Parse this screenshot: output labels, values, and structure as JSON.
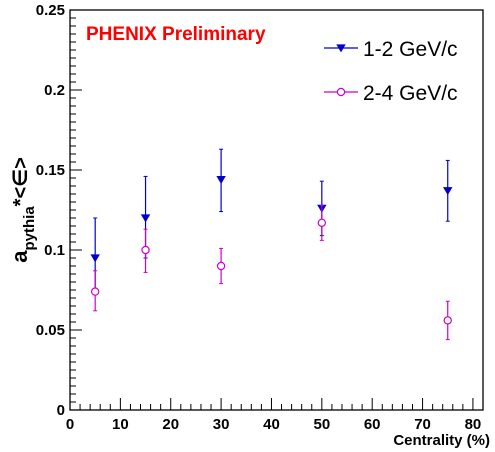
{
  "chart_data": {
    "type": "scatter",
    "title": "PHENIX Preliminary",
    "title_color": "#ff0000",
    "xlabel": "Centrality (%)",
    "ylabel": {
      "main": "a",
      "subscript": "pythia",
      "rest": "*<∈>"
    },
    "xlim": [
      0,
      82
    ],
    "ylim": [
      0,
      0.25
    ],
    "x_ticks": [
      {
        "value": 0,
        "label": "0"
      },
      {
        "value": 10,
        "label": "10"
      },
      {
        "value": 20,
        "label": "20"
      },
      {
        "value": 30,
        "label": "30"
      },
      {
        "value": 40,
        "label": "40"
      },
      {
        "value": 50,
        "label": "50"
      },
      {
        "value": 60,
        "label": "60"
      },
      {
        "value": 70,
        "label": "70"
      },
      {
        "value": 80,
        "label": "80"
      }
    ],
    "y_ticks": [
      {
        "value": 0,
        "label": "0"
      },
      {
        "value": 0.05,
        "label": "0.05"
      },
      {
        "value": 0.1,
        "label": "0.1"
      },
      {
        "value": 0.15,
        "label": "0.15"
      },
      {
        "value": 0.2,
        "label": "0.2"
      },
      {
        "value": 0.25,
        "label": "0.25"
      }
    ],
    "grid": false,
    "legend_position": "top-right",
    "series": [
      {
        "name": "1-2 GeV/c",
        "color": "#0000cc",
        "marker": "filled-triangle-down",
        "x": [
          5,
          15,
          30,
          50,
          75
        ],
        "y": [
          0.095,
          0.12,
          0.144,
          0.126,
          0.137
        ],
        "err_low": [
          0.019,
          0.025,
          0.02,
          0.017,
          0.019
        ],
        "err_high": [
          0.025,
          0.026,
          0.019,
          0.017,
          0.019
        ]
      },
      {
        "name": "2-4 GeV/c",
        "color": "#cc00cc",
        "marker": "open-circle",
        "x": [
          5,
          15,
          30,
          50,
          75
        ],
        "y": [
          0.074,
          0.1,
          0.09,
          0.117,
          0.056
        ],
        "err_low": [
          0.012,
          0.014,
          0.011,
          0.011,
          0.012
        ],
        "err_high": [
          0.013,
          0.013,
          0.011,
          0.011,
          0.012
        ]
      }
    ]
  }
}
